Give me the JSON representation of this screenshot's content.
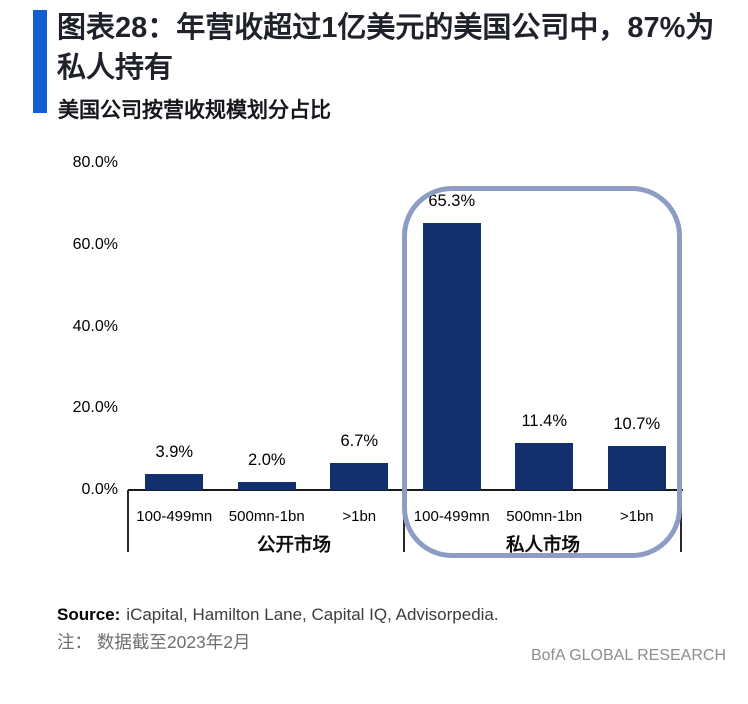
{
  "header": {
    "title_line1": "图表28：年营收超过1亿美元的美国公司中，87%为",
    "title_line2": "私人持有",
    "subtitle": "美国公司按营收规模划分占比",
    "accent_color": "#1160d2"
  },
  "chart_data": {
    "type": "bar",
    "title": "美国公司按营收规模划分占比",
    "ylim": [
      0,
      80
    ],
    "grid": false,
    "legend": false,
    "bar_color": "#12306d",
    "highlight_border_color": "#8d9cc3",
    "y_ticks": [
      {
        "label": "80.0%",
        "value": 80
      },
      {
        "label": "60.0%",
        "value": 60
      },
      {
        "label": "40.0%",
        "value": 40
      },
      {
        "label": "20.0%",
        "value": 20
      },
      {
        "label": "0.0%",
        "value": 0
      }
    ],
    "groups": [
      {
        "label": "公开市场",
        "highlighted": false,
        "points": [
          {
            "category": "100-499mn",
            "value": 3.9,
            "label": "3.9%"
          },
          {
            "category": "500mn-1bn",
            "value": 2.0,
            "label": "2.0%"
          },
          {
            "category": ">1bn",
            "value": 6.7,
            "label": "6.7%"
          }
        ]
      },
      {
        "label": "私人市场",
        "highlighted": true,
        "points": [
          {
            "category": "100-499mn",
            "value": 65.3,
            "label": "65.3%"
          },
          {
            "category": "500mn-1bn",
            "value": 11.4,
            "label": "11.4%"
          },
          {
            "category": ">1bn",
            "value": 10.7,
            "label": "10.7%"
          }
        ]
      }
    ]
  },
  "footer": {
    "source_label": "Source:",
    "source_text": "iCapital, Hamilton Lane, Capital IQ, Advisorpedia.",
    "note": "注： 数据截至2023年2月",
    "brand": "BofA GLOBAL RESEARCH"
  }
}
